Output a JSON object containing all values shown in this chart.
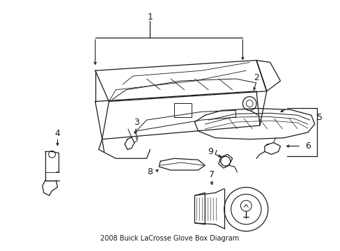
{
  "title": "2008 Buick LaCrosse Glove Box Diagram",
  "bg_color": "#ffffff",
  "line_color": "#1a1a1a",
  "fig_width": 4.89,
  "fig_height": 3.6,
  "dpi": 100
}
